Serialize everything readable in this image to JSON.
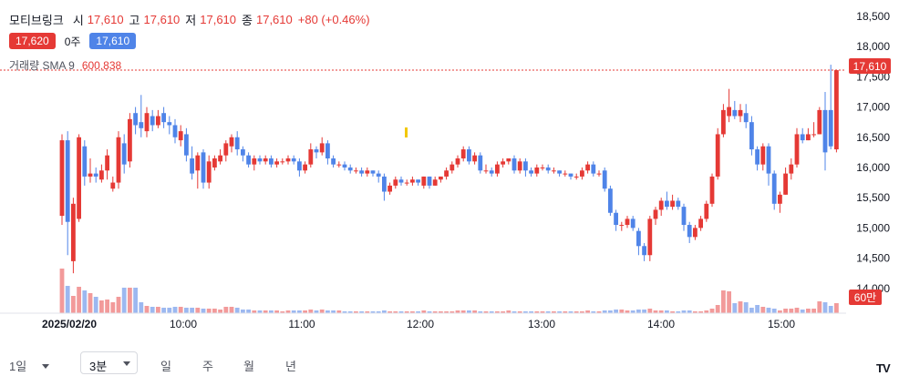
{
  "header": {
    "stock_name": "모티브링크",
    "open_label": "시",
    "open": "17,610",
    "high_label": "고",
    "high": "17,610",
    "low_label": "저",
    "low": "17,610",
    "close_label": "종",
    "close": "17,610",
    "change": "+80 (+0.46%)",
    "ask_badge": "17,620",
    "qty": "0주",
    "bid_badge": "17,610",
    "sma_label": "거래량 SMA 9",
    "sma_value": "600,838"
  },
  "colors": {
    "up": "#e53935",
    "down": "#4f84e8",
    "vol_up": "#f29a9a",
    "vol_down": "#9cb8f0",
    "highlight": "#f2c800"
  },
  "chart_data": {
    "type": "candlestick",
    "interval": "3분",
    "date_label": "2025/02/20",
    "y_ticks": [
      14000,
      14500,
      15000,
      15500,
      16000,
      16500,
      17000,
      17500,
      18000,
      18500
    ],
    "y_tick_labels": [
      "14,000",
      "14,500",
      "15,000",
      "15,500",
      "16,000",
      "16,500",
      "17,000",
      "17,500",
      "18,000",
      "18,500"
    ],
    "ylim": [
      13650,
      18620
    ],
    "x_tick_labels": [
      "2025/02/20",
      "10:00",
      "11:00",
      "12:00",
      "13:00",
      "14:00",
      "15:00"
    ],
    "last_price_label": "17,610",
    "volume_scale_label": "60만",
    "candles": [
      [
        15200,
        16450,
        16550,
        15050
      ],
      [
        16450,
        15100,
        16600,
        14550
      ],
      [
        14450,
        15400,
        15500,
        14250
      ],
      [
        15150,
        16500,
        16550,
        15100
      ],
      [
        16350,
        15850,
        16450,
        15700
      ],
      [
        15850,
        15900,
        16150,
        15750
      ],
      [
        15900,
        15850,
        16000,
        15750
      ],
      [
        15800,
        15950,
        16050,
        15750
      ],
      [
        15950,
        16200,
        16300,
        15800
      ],
      [
        15650,
        15750,
        15850,
        15600
      ],
      [
        15750,
        16500,
        16600,
        15650
      ],
      [
        16400,
        16050,
        16550,
        15900
      ],
      [
        16100,
        16800,
        16900,
        16000
      ],
      [
        16900,
        16700,
        17000,
        16550
      ],
      [
        16750,
        16650,
        17200,
        16500
      ],
      [
        16600,
        16900,
        17000,
        16500
      ],
      [
        16850,
        16700,
        16950,
        16600
      ],
      [
        16700,
        16850,
        16950,
        16650
      ],
      [
        16900,
        16750,
        17000,
        16650
      ],
      [
        16750,
        16700,
        16850,
        16550
      ],
      [
        16700,
        16500,
        16800,
        16400
      ],
      [
        16450,
        16600,
        16700,
        16350
      ],
      [
        16550,
        16200,
        16650,
        16100
      ],
      [
        16150,
        15900,
        16350,
        15800
      ],
      [
        15950,
        16200,
        16250,
        15650
      ],
      [
        16250,
        15750,
        16300,
        15650
      ],
      [
        15750,
        16100,
        16200,
        15650
      ],
      [
        16000,
        16150,
        16200,
        15950
      ],
      [
        16100,
        16200,
        16300,
        16050
      ],
      [
        16200,
        16400,
        16450,
        16100
      ],
      [
        16350,
        16500,
        16550,
        16250
      ],
      [
        16500,
        16300,
        16600,
        16200
      ],
      [
        16300,
        16200,
        16350,
        16100
      ],
      [
        16200,
        16050,
        16250,
        16000
      ],
      [
        16050,
        16150,
        16200,
        15950
      ],
      [
        16150,
        16100,
        16200,
        16050
      ],
      [
        16100,
        16150,
        16200,
        16050
      ],
      [
        16150,
        16050,
        16200,
        16000
      ],
      [
        16050,
        16100,
        16150,
        16000
      ],
      [
        16100,
        16100,
        16150,
        16050
      ],
      [
        16100,
        16150,
        16200,
        16050
      ],
      [
        16150,
        16100,
        16200,
        16050
      ],
      [
        16100,
        15950,
        16150,
        15850
      ],
      [
        15950,
        16050,
        16100,
        15900
      ],
      [
        16050,
        16300,
        16400,
        16000
      ],
      [
        16300,
        16250,
        16350,
        16150
      ],
      [
        16250,
        16400,
        16500,
        16200
      ],
      [
        16400,
        16150,
        16450,
        16050
      ],
      [
        16150,
        16050,
        16200,
        16000
      ],
      [
        16050,
        16050,
        16100,
        16000
      ],
      [
        16050,
        16000,
        16100,
        15950
      ],
      [
        16000,
        15950,
        16050,
        15900
      ],
      [
        15950,
        15950,
        16000,
        15900
      ],
      [
        15950,
        15900,
        16000,
        15850
      ],
      [
        15900,
        15950,
        16000,
        15850
      ],
      [
        15950,
        15900,
        15950,
        15850
      ],
      [
        15900,
        15850,
        15950,
        15750
      ],
      [
        15850,
        15600,
        15900,
        15450
      ],
      [
        15600,
        15700,
        15750,
        15550
      ],
      [
        15700,
        15800,
        15850,
        15650
      ],
      [
        15800,
        15750,
        15850,
        15700
      ],
      [
        15750,
        15750,
        15800,
        15700
      ],
      [
        15750,
        15800,
        15850,
        15700
      ],
      [
        15800,
        15750,
        15800,
        15700
      ],
      [
        15700,
        15850,
        15850,
        15650
      ],
      [
        15850,
        15700,
        15850,
        15650
      ],
      [
        15700,
        15800,
        15850,
        15700
      ],
      [
        15800,
        15850,
        15850,
        15750
      ],
      [
        15850,
        15950,
        16000,
        15800
      ],
      [
        15950,
        16050,
        16100,
        15900
      ],
      [
        16050,
        16150,
        16200,
        16000
      ],
      [
        16150,
        16300,
        16350,
        16100
      ],
      [
        16300,
        16100,
        16350,
        16050
      ],
      [
        16100,
        16200,
        16250,
        16050
      ],
      [
        16200,
        15950,
        16250,
        15900
      ],
      [
        15950,
        15950,
        16050,
        15900
      ],
      [
        15950,
        15900,
        16000,
        15850
      ],
      [
        15900,
        16050,
        16100,
        15850
      ],
      [
        16050,
        16100,
        16150,
        16000
      ],
      [
        16100,
        16150,
        16150,
        16050
      ],
      [
        16150,
        15950,
        16200,
        15900
      ],
      [
        15950,
        16100,
        16150,
        15900
      ],
      [
        16100,
        15950,
        16150,
        15850
      ],
      [
        15950,
        15900,
        16000,
        15850
      ],
      [
        15900,
        16000,
        16050,
        15850
      ],
      [
        16000,
        16000,
        16050,
        15950
      ],
      [
        16000,
        15950,
        16050,
        15900
      ],
      [
        15950,
        15950,
        16000,
        15900
      ],
      [
        15950,
        15900,
        15950,
        15850
      ],
      [
        15900,
        15900,
        15950,
        15850
      ],
      [
        15900,
        15850,
        15900,
        15800
      ],
      [
        15850,
        15850,
        15900,
        15800
      ],
      [
        15850,
        15950,
        16000,
        15800
      ],
      [
        15950,
        16050,
        16100,
        15900
      ],
      [
        16050,
        15900,
        16100,
        15850
      ],
      [
        15900,
        15900,
        15950,
        15850
      ],
      [
        15950,
        15650,
        16000,
        15600
      ],
      [
        15650,
        15250,
        15700,
        15200
      ],
      [
        15250,
        15050,
        15300,
        14950
      ],
      [
        15050,
        15050,
        15100,
        14950
      ],
      [
        15050,
        15150,
        15200,
        15000
      ],
      [
        15150,
        15000,
        15200,
        14950
      ],
      [
        14950,
        14700,
        15000,
        14550
      ],
      [
        14700,
        14550,
        14750,
        14450
      ],
      [
        14550,
        15150,
        15200,
        14450
      ],
      [
        15150,
        15300,
        15350,
        15050
      ],
      [
        15300,
        15450,
        15500,
        15200
      ],
      [
        15450,
        15350,
        15600,
        15300
      ],
      [
        15350,
        15450,
        15550,
        15300
      ],
      [
        15450,
        15350,
        15500,
        15300
      ],
      [
        15350,
        15050,
        15400,
        14950
      ],
      [
        15050,
        14850,
        15100,
        14750
      ],
      [
        14850,
        15000,
        15050,
        14800
      ],
      [
        15000,
        15150,
        15200,
        14950
      ],
      [
        15150,
        15400,
        15450,
        15100
      ],
      [
        15400,
        15850,
        15900,
        15350
      ],
      [
        15850,
        16550,
        16650,
        15800
      ],
      [
        16550,
        16950,
        17050,
        16500
      ],
      [
        16850,
        17000,
        17300,
        16750
      ],
      [
        16950,
        16850,
        17100,
        16800
      ],
      [
        16850,
        16950,
        17050,
        16750
      ],
      [
        16900,
        16750,
        17050,
        16650
      ],
      [
        16750,
        16300,
        16850,
        16200
      ],
      [
        16300,
        16050,
        16350,
        15950
      ],
      [
        16050,
        16350,
        16400,
        15950
      ],
      [
        16350,
        15900,
        16400,
        15700
      ],
      [
        15900,
        15400,
        15950,
        15300
      ],
      [
        15400,
        15550,
        15600,
        15250
      ],
      [
        15550,
        15900,
        16000,
        15550
      ],
      [
        15900,
        16050,
        16150,
        15800
      ],
      [
        16050,
        16550,
        16650,
        16000
      ],
      [
        16550,
        16450,
        16650,
        16400
      ],
      [
        16450,
        16550,
        16650,
        16450
      ],
      [
        16550,
        16550,
        16750,
        16500
      ],
      [
        16550,
        16950,
        17000,
        16550
      ],
      [
        16950,
        16250,
        17250,
        15950
      ],
      [
        16950,
        16350,
        17700,
        16300
      ],
      [
        16300,
        17610,
        17620,
        16250
      ]
    ],
    "volume": [
      4.9,
      3.0,
      1.9,
      2.9,
      2.5,
      2.2,
      1.8,
      1.4,
      1.5,
      1.2,
      1.8,
      2.8,
      2.8,
      2.8,
      1.2,
      0.8,
      0.7,
      0.7,
      0.6,
      0.6,
      0.7,
      0.7,
      0.6,
      0.6,
      0.6,
      0.5,
      0.5,
      0.5,
      0.4,
      0.7,
      0.7,
      0.6,
      0.4,
      0.4,
      0.3,
      0.3,
      0.3,
      0.3,
      0.3,
      0.2,
      0.3,
      0.3,
      0.3,
      0.3,
      0.4,
      0.3,
      0.4,
      0.3,
      0.3,
      0.3,
      0.2,
      0.2,
      0.2,
      0.2,
      0.2,
      0.2,
      0.2,
      0.3,
      0.2,
      0.2,
      0.2,
      0.2,
      0.2,
      0.2,
      0.3,
      0.2,
      0.2,
      0.2,
      0.2,
      0.2,
      0.3,
      0.3,
      0.3,
      0.3,
      0.2,
      0.2,
      0.2,
      0.2,
      0.2,
      0.3,
      0.2,
      0.2,
      0.2,
      0.2,
      0.2,
      0.2,
      0.2,
      0.2,
      0.2,
      0.2,
      0.2,
      0.2,
      0.2,
      0.3,
      0.2,
      0.2,
      0.3,
      0.3,
      0.4,
      0.4,
      0.3,
      0.3,
      0.4,
      0.4,
      0.5,
      0.3,
      0.3,
      0.3,
      0.2,
      0.2,
      0.3,
      0.3,
      0.2,
      0.2,
      0.3,
      0.5,
      0.9,
      2.5,
      2.4,
      1.1,
      1.3,
      1.2,
      0.6,
      0.9,
      0.7,
      0.6,
      0.5,
      0.3,
      0.5,
      0.5,
      0.6,
      0.4,
      0.5,
      0.5,
      1.3,
      1.2,
      0.8,
      1.1
    ]
  },
  "bottom_bar": {
    "range_select": "1일",
    "interval_select": "3분",
    "period_day": "일",
    "period_week": "주",
    "period_month": "월",
    "period_year": "년",
    "logo": "TV"
  }
}
